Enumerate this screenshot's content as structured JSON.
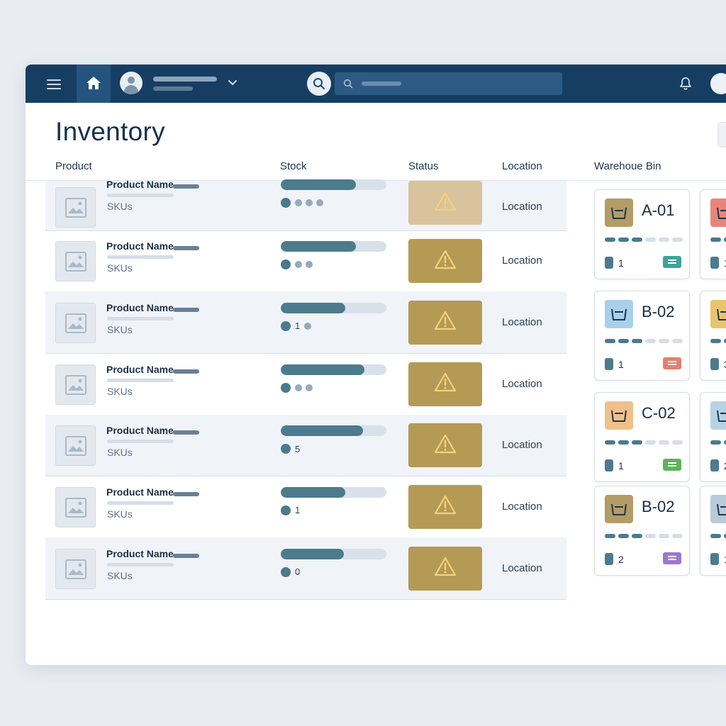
{
  "page": {
    "title": "Inventory"
  },
  "columns": {
    "product": "Product",
    "stock": "Stock",
    "status": "Status",
    "location": "Location",
    "bin": "Warehoue Bin"
  },
  "rows": [
    {
      "name": "Product Name",
      "sku": "SKUs",
      "stock_fill": 0.71,
      "stock_count": "",
      "location": "Location",
      "status": "warning"
    },
    {
      "name": "Product Name",
      "sku": "SKUs",
      "stock_fill": 0.71,
      "stock_count": "",
      "location": "Location",
      "status": "warning"
    },
    {
      "name": "Product Name",
      "sku": "SKUs",
      "stock_fill": 0.61,
      "stock_count": "1",
      "location": "Location",
      "status": "warning"
    },
    {
      "name": "Product Name",
      "sku": "SKUs",
      "stock_fill": 0.79,
      "stock_count": "",
      "location": "Location",
      "status": "warning"
    },
    {
      "name": "Product Name",
      "sku": "SKUs",
      "stock_fill": 0.78,
      "stock_count": "5",
      "location": "Location",
      "status": "warning"
    },
    {
      "name": "Product Name",
      "sku": "SKUs",
      "stock_fill": 0.61,
      "stock_count": "1",
      "location": "Location",
      "status": "warning"
    },
    {
      "name": "Product Name",
      "sku": "SKUs",
      "stock_fill": 0.6,
      "stock_count": "0",
      "location": "Location",
      "status": "warning"
    }
  ],
  "bins": [
    {
      "label": "A-01",
      "qty": "1",
      "icon_color": "#b49c66",
      "tag_color": "#3aa59a",
      "level": 3
    },
    {
      "label": "B-02",
      "qty": "1",
      "icon_color": "#a9d0ea",
      "tag_color": "#e57e72",
      "level": 3
    },
    {
      "label": "C-02",
      "qty": "1",
      "icon_color": "#f0c08a",
      "tag_color": "#5fb35a",
      "level": 3
    },
    {
      "label": "B-02",
      "qty": "2",
      "icon_color": "#b49c66",
      "tag_color": "#9b78cc",
      "level": 3
    }
  ],
  "bins_partial": [
    {
      "qty": "1",
      "icon_color": "#e8857a"
    },
    {
      "qty": "3",
      "icon_color": "#e9c46a"
    },
    {
      "qty": "2",
      "icon_color": "#b6d3e6"
    },
    {
      "qty": "1",
      "icon_color": "#b9cad8"
    }
  ],
  "colors": {
    "topbar": "#163e63",
    "accent": "#4c7b8e",
    "warning": "#b59a56"
  }
}
